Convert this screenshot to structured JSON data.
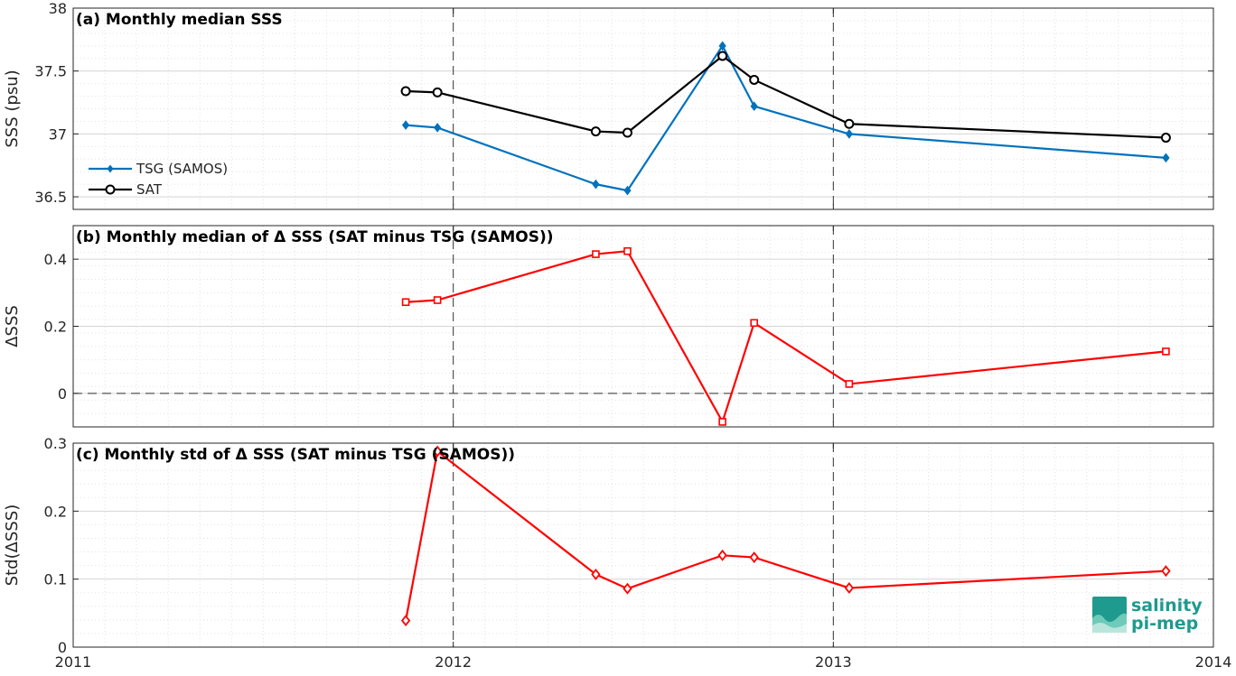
{
  "chart_data": [
    {
      "type": "line",
      "title": "(a) Monthly median SSS",
      "ylabel": "SSS (psu)",
      "xlim": [
        2011,
        2014
      ],
      "ylim": [
        36.4,
        38
      ],
      "x_ticks": [
        "2011",
        "2012",
        "2013",
        "2014"
      ],
      "y_ticks": [
        "36.5",
        "37",
        "37.5",
        "38"
      ],
      "grid": true,
      "legend": "middle-left",
      "x": [
        "2011-11",
        "2011-12",
        "2012-05",
        "2012-06",
        "2012-09",
        "2012-10",
        "2013-01",
        "2013-11"
      ],
      "series": [
        {
          "name": "TSG (SAMOS)",
          "color": "#0072bd",
          "marker": "diamond-filled",
          "values": [
            37.07,
            37.05,
            36.6,
            36.55,
            37.7,
            37.22,
            37.0,
            36.81
          ]
        },
        {
          "name": "SAT",
          "color": "#000000",
          "marker": "circle-open",
          "values": [
            37.34,
            37.33,
            37.02,
            37.01,
            37.62,
            37.43,
            37.08,
            36.97
          ]
        }
      ]
    },
    {
      "type": "line",
      "title": "(b) Monthly median of Δ SSS (SAT minus TSG (SAMOS))",
      "ylabel": "ΔSSS",
      "xlim": [
        2011,
        2014
      ],
      "ylim": [
        -0.1,
        0.5
      ],
      "y_ticks": [
        "0",
        "0.2",
        "0.4"
      ],
      "grid": true,
      "zero_line": "dashed",
      "x": [
        "2011-11",
        "2011-12",
        "2012-05",
        "2012-06",
        "2012-09",
        "2012-10",
        "2013-01",
        "2013-11"
      ],
      "series": [
        {
          "color": "#ff0000",
          "marker": "square-open",
          "values": [
            0.272,
            0.278,
            0.415,
            0.424,
            -0.085,
            0.21,
            0.028,
            0.125
          ]
        }
      ]
    },
    {
      "type": "line",
      "title": "(c) Monthly std of Δ SSS (SAT minus TSG (SAMOS))",
      "ylabel": "Std(ΔSSS)",
      "xlim": [
        2011,
        2014
      ],
      "ylim": [
        0,
        0.3
      ],
      "y_ticks": [
        "0",
        "0.1",
        "0.2",
        "0.3"
      ],
      "grid": true,
      "x": [
        "2011-11",
        "2011-12",
        "2012-05",
        "2012-06",
        "2012-09",
        "2012-10",
        "2013-01",
        "2013-11"
      ],
      "series": [
        {
          "color": "#ff0000",
          "marker": "diamond-open",
          "values": [
            0.039,
            0.288,
            0.107,
            0.086,
            0.135,
            0.132,
            0.087,
            0.112
          ]
        }
      ]
    }
  ],
  "year_markers": [
    "2012",
    "2013"
  ],
  "logo": {
    "line1": "salinity",
    "line2": "pi-mep"
  }
}
